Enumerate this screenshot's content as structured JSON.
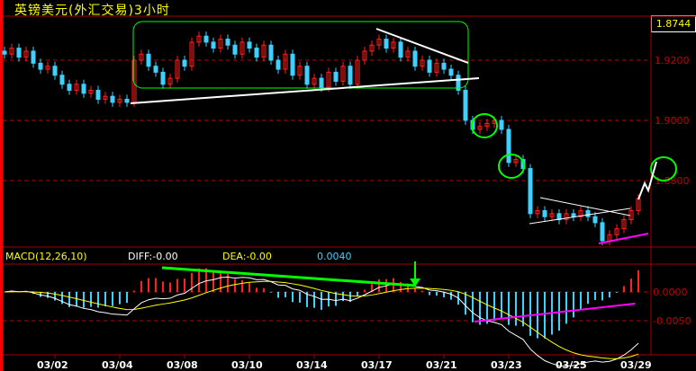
{
  "header": {
    "title": "英镑美元(外汇交易)3小时",
    "last_price": "1.8744"
  },
  "macd_header": {
    "name": "MACD(12,26,10)",
    "diff": "DIFF:-0.00",
    "dea": "DEA:-0.00",
    "macd": "0.0040"
  },
  "colors": {
    "up": "#ff2020",
    "down": "#40d0ff",
    "grid": "#c00000",
    "diff": "#ffffff",
    "dea": "#ffff00",
    "annotation_green": "#00ff00",
    "annotation_magenta": "#ff00ff"
  },
  "chart_data": {
    "type": "candlestick",
    "y_ticks": [
      "1.9200",
      "1.9000",
      "1.8800"
    ],
    "y_tick_values": [
      1.92,
      1.9,
      1.88
    ],
    "macd_ticks": [
      "0.0000",
      "-0.0050"
    ],
    "macd_tick_values": [
      0,
      -0.005
    ],
    "x_ticks": [
      "03/02",
      "03/04",
      "03/08",
      "03/10",
      "03/14",
      "03/17",
      "03/21",
      "03/23",
      "03/25",
      "03/29"
    ],
    "x_tick_bar_index": [
      7,
      16,
      25,
      34,
      43,
      52,
      61,
      70,
      79,
      88
    ],
    "closes": [
      1.922,
      1.924,
      1.921,
      1.923,
      1.919,
      1.917,
      1.918,
      1.915,
      1.912,
      1.91,
      1.912,
      1.909,
      1.91,
      1.907,
      1.908,
      1.906,
      1.907,
      1.906,
      1.92,
      1.922,
      1.918,
      1.916,
      1.912,
      1.914,
      1.92,
      1.918,
      1.926,
      1.928,
      1.926,
      1.924,
      1.927,
      1.925,
      1.922,
      1.926,
      1.924,
      1.921,
      1.925,
      1.92,
      1.917,
      1.922,
      1.915,
      1.918,
      1.912,
      1.914,
      1.911,
      1.916,
      1.913,
      1.918,
      1.912,
      1.92,
      1.923,
      1.925,
      1.927,
      1.924,
      1.926,
      1.921,
      1.923,
      1.918,
      1.92,
      1.916,
      1.919,
      1.917,
      1.915,
      1.91,
      1.9,
      1.897,
      1.898,
      1.899,
      1.9,
      1.897,
      1.886,
      1.887,
      1.884,
      1.869,
      1.87,
      1.868,
      1.869,
      1.867,
      1.869,
      1.868,
      1.87,
      1.868,
      1.866,
      1.86,
      1.862,
      1.864,
      1.867,
      1.87,
      1.874
    ],
    "macd_params": [
      12,
      26,
      10
    ]
  }
}
